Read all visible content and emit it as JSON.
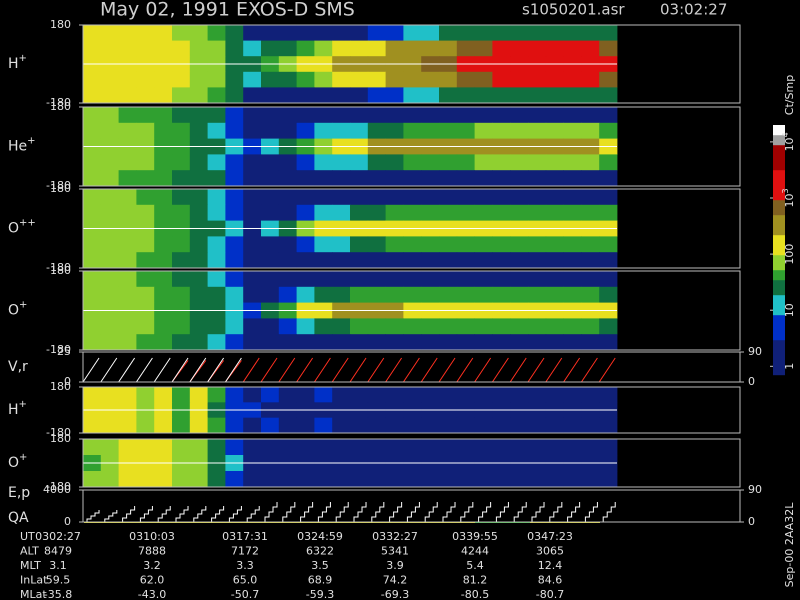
{
  "header": {
    "title": "May 02, 1991   EXOS-D SMS",
    "file": "s1050201.asr",
    "time": "03:02:27"
  },
  "chart_data": [
    {
      "type": "heatmap",
      "label": "H",
      "label_sup": "+",
      "ylim": [
        -180,
        180
      ],
      "yticks": [
        180,
        -180
      ],
      "values": [
        [
          150,
          150,
          150,
          120,
          120,
          80,
          60,
          40,
          30,
          2,
          2,
          2,
          2,
          2,
          3,
          3,
          5,
          5,
          10,
          10,
          20,
          20,
          30,
          30,
          30,
          30,
          30,
          30,
          30,
          20
        ],
        [
          150,
          150,
          150,
          120,
          120,
          100,
          80,
          60,
          20,
          10,
          20,
          30,
          50,
          80,
          100,
          100,
          150,
          200,
          300,
          300,
          400,
          600,
          800,
          1000,
          1000,
          1000,
          1000,
          1000,
          1000,
          800
        ],
        [
          150,
          150,
          150,
          150,
          120,
          100,
          80,
          60,
          30,
          30,
          50,
          80,
          100,
          150,
          200,
          200,
          300,
          400,
          500,
          600,
          800,
          1000,
          1500,
          2000,
          2000,
          2000,
          2000,
          2000,
          2000,
          1500
        ],
        [
          150,
          150,
          150,
          120,
          120,
          100,
          80,
          60,
          20,
          10,
          20,
          30,
          50,
          80,
          100,
          100,
          150,
          200,
          300,
          300,
          400,
          600,
          800,
          1000,
          1000,
          1000,
          1000,
          1000,
          1000,
          800
        ],
        [
          150,
          150,
          150,
          120,
          120,
          80,
          60,
          40,
          30,
          2,
          2,
          2,
          2,
          2,
          3,
          3,
          5,
          5,
          10,
          10,
          20,
          20,
          30,
          30,
          30,
          30,
          30,
          30,
          30,
          20
        ]
      ]
    },
    {
      "type": "heatmap",
      "label": "He",
      "label_sup": "+",
      "ylim": [
        -180,
        180
      ],
      "yticks": [
        180,
        -180
      ],
      "values": [
        [
          60,
          60,
          50,
          50,
          40,
          30,
          20,
          20,
          5,
          1,
          1,
          1,
          1,
          1,
          1,
          1,
          1,
          1,
          2,
          2,
          2,
          2,
          3,
          3,
          3,
          3,
          3,
          3,
          3,
          3
        ],
        [
          80,
          80,
          60,
          60,
          50,
          40,
          20,
          15,
          5,
          1,
          2,
          3,
          5,
          8,
          10,
          15,
          20,
          30,
          40,
          40,
          50,
          50,
          60,
          60,
          60,
          60,
          60,
          60,
          60,
          50
        ],
        [
          80,
          80,
          80,
          60,
          50,
          40,
          20,
          20,
          8,
          5,
          10,
          20,
          40,
          60,
          100,
          150,
          200,
          200,
          200,
          200,
          200,
          200,
          200,
          200,
          200,
          200,
          200,
          200,
          200,
          150
        ],
        [
          80,
          80,
          60,
          60,
          50,
          40,
          20,
          15,
          5,
          1,
          2,
          3,
          5,
          8,
          10,
          15,
          20,
          30,
          40,
          40,
          50,
          50,
          60,
          60,
          60,
          60,
          60,
          60,
          60,
          50
        ],
        [
          60,
          60,
          50,
          50,
          40,
          30,
          20,
          20,
          5,
          1,
          1,
          1,
          1,
          1,
          1,
          1,
          1,
          1,
          2,
          2,
          2,
          2,
          3,
          3,
          3,
          3,
          3,
          3,
          3,
          3
        ]
      ]
    },
    {
      "type": "heatmap",
      "label": "O",
      "label_sup": "++",
      "ylim": [
        -180,
        180
      ],
      "yticks": [
        180,
        -180
      ],
      "values": [
        [
          60,
          60,
          60,
          50,
          40,
          30,
          20,
          8,
          5,
          1,
          1,
          1,
          1,
          1,
          1,
          1,
          1,
          1,
          1,
          1,
          1,
          1,
          1,
          1,
          1,
          1,
          1,
          1,
          1,
          1
        ],
        [
          80,
          80,
          60,
          60,
          50,
          40,
          20,
          10,
          5,
          1,
          2,
          3,
          5,
          8,
          10,
          20,
          30,
          40,
          40,
          40,
          40,
          50,
          50,
          50,
          50,
          50,
          50,
          50,
          50,
          40
        ],
        [
          80,
          80,
          80,
          60,
          50,
          40,
          30,
          20,
          8,
          3,
          10,
          30,
          60,
          100,
          120,
          150,
          150,
          150,
          150,
          150,
          150,
          150,
          150,
          150,
          150,
          150,
          150,
          150,
          150,
          120
        ],
        [
          80,
          80,
          60,
          60,
          50,
          40,
          20,
          10,
          5,
          1,
          2,
          3,
          5,
          8,
          10,
          20,
          30,
          40,
          40,
          40,
          40,
          50,
          50,
          50,
          50,
          50,
          50,
          50,
          50,
          40
        ],
        [
          60,
          60,
          60,
          50,
          40,
          30,
          20,
          8,
          5,
          1,
          1,
          1,
          1,
          1,
          1,
          1,
          1,
          1,
          1,
          1,
          1,
          1,
          1,
          1,
          1,
          1,
          1,
          1,
          1,
          1
        ]
      ]
    },
    {
      "type": "heatmap",
      "label": "O",
      "label_sup": "+",
      "ylim": [
        -180,
        180
      ],
      "yticks": [
        180,
        -180
      ],
      "values": [
        [
          60,
          60,
          60,
          50,
          40,
          30,
          20,
          10,
          5,
          1,
          1,
          1,
          1,
          1,
          1,
          1,
          1,
          1,
          1,
          1,
          1,
          1,
          1,
          1,
          1,
          1,
          1,
          1,
          1,
          1
        ],
        [
          80,
          80,
          80,
          60,
          50,
          40,
          30,
          20,
          8,
          2,
          3,
          5,
          10,
          20,
          30,
          40,
          40,
          40,
          40,
          40,
          40,
          40,
          40,
          40,
          40,
          40,
          40,
          40,
          40,
          30
        ],
        [
          80,
          80,
          80,
          60,
          50,
          40,
          30,
          20,
          8,
          5,
          20,
          50,
          100,
          150,
          200,
          200,
          200,
          200,
          150,
          150,
          150,
          150,
          150,
          150,
          150,
          150,
          150,
          150,
          150,
          120
        ],
        [
          80,
          80,
          80,
          60,
          50,
          40,
          30,
          20,
          8,
          2,
          3,
          5,
          10,
          20,
          30,
          40,
          40,
          40,
          40,
          40,
          40,
          40,
          40,
          40,
          40,
          40,
          40,
          40,
          40,
          30
        ],
        [
          60,
          60,
          60,
          50,
          40,
          30,
          20,
          10,
          5,
          1,
          1,
          1,
          1,
          1,
          1,
          1,
          1,
          1,
          1,
          1,
          1,
          1,
          1,
          1,
          1,
          1,
          1,
          1,
          1,
          1
        ]
      ]
    },
    {
      "type": "line",
      "label": "V,r",
      "ylim": [
        0,
        25
      ],
      "yticks": [
        25,
        0
      ],
      "y2lim": [
        0,
        90
      ],
      "y2ticks": [
        90,
        0
      ],
      "series": [
        {
          "color": "#ff3020",
          "values": [
            null,
            null,
            null,
            null,
            null,
            18,
            18,
            18,
            18,
            20,
            20,
            20,
            20,
            20,
            20,
            20,
            20,
            20,
            20,
            20,
            20,
            20,
            20,
            20,
            20,
            20,
            20,
            20,
            20,
            20
          ]
        },
        {
          "color": "#ffffff",
          "values": [
            20,
            20,
            20,
            20,
            20,
            20,
            20,
            20,
            20,
            null,
            null,
            null,
            null,
            null,
            null,
            null,
            null,
            null,
            null,
            null,
            null,
            null,
            null,
            null,
            null,
            null,
            null,
            null,
            null,
            null
          ]
        }
      ]
    },
    {
      "type": "heatmap",
      "label": "H",
      "label_sup": "+",
      "ylim": [
        -180,
        180
      ],
      "yticks": [
        180,
        -180
      ],
      "values": [
        [
          100,
          100,
          150,
          60,
          150,
          40,
          100,
          40,
          5,
          3,
          5,
          3,
          2,
          5,
          3,
          2,
          1,
          1,
          1,
          1,
          1,
          1,
          1,
          1,
          1,
          1,
          1,
          1,
          1,
          1
        ],
        [
          150,
          100,
          150,
          60,
          120,
          40,
          100,
          30,
          5,
          5,
          3,
          3,
          3,
          2,
          3,
          1,
          1,
          1,
          1,
          1,
          1,
          1,
          1,
          1,
          1,
          1,
          1,
          1,
          1,
          1
        ],
        [
          100,
          100,
          150,
          60,
          150,
          40,
          100,
          40,
          5,
          3,
          5,
          3,
          2,
          5,
          3,
          2,
          1,
          1,
          1,
          1,
          1,
          1,
          1,
          1,
          1,
          1,
          1,
          1,
          1,
          1
        ]
      ]
    },
    {
      "type": "heatmap",
      "label": "O",
      "label_sup": "+",
      "ylim": [
        -180,
        180
      ],
      "yticks": [
        180,
        -180
      ],
      "values": [
        [
          60,
          60,
          150,
          150,
          150,
          60,
          60,
          30,
          5,
          1,
          1,
          1,
          1,
          1,
          1,
          1,
          1,
          1,
          1,
          1,
          1,
          1,
          1,
          1,
          1,
          1,
          1,
          1,
          1,
          1
        ],
        [
          40,
          60,
          150,
          150,
          150,
          60,
          60,
          30,
          8,
          1,
          1,
          1,
          1,
          1,
          1,
          1,
          1,
          1,
          1,
          1,
          1,
          1,
          1,
          1,
          1,
          1,
          1,
          1,
          1,
          1
        ],
        [
          60,
          60,
          150,
          150,
          120,
          60,
          60,
          30,
          5,
          1,
          1,
          1,
          1,
          1,
          1,
          1,
          1,
          1,
          1,
          1,
          1,
          1,
          1,
          1,
          1,
          1,
          1,
          1,
          1,
          1
        ]
      ]
    },
    {
      "type": "step",
      "label": "E,p",
      "label2": "QA",
      "ylim": [
        0,
        4000
      ],
      "yticks": [
        4000,
        0
      ],
      "y2lim": [
        0,
        90
      ],
      "y2ticks": [
        90,
        0
      ],
      "series": [
        {
          "color": "#ffffff",
          "values": [
            1500,
            1500,
            2000,
            2000,
            2000,
            2000,
            2000,
            2000,
            2000,
            2000,
            2500,
            2500,
            2500,
            2500,
            2500,
            2500,
            2500,
            2500,
            2500,
            2500,
            2500,
            2500,
            2500,
            2500,
            2500,
            2500,
            2500,
            2500,
            2500,
            2500
          ]
        }
      ]
    }
  ],
  "colorbar": {
    "label": "Ct/Smp",
    "zlim": [
      0.7,
      20000
    ],
    "ticks": [
      1,
      10,
      100,
      {
        "value": 1000,
        "label": "10",
        "sup": "3"
      },
      {
        "value": 10000,
        "label": "10",
        "sup": "4"
      }
    ]
  },
  "table": {
    "rows": [
      [
        "UT",
        "0302:27",
        "0310:03",
        "0317:31",
        "0324:59",
        "0332:27",
        "0339:55",
        "0347:23"
      ],
      [
        "ALT",
        "8479",
        "7888",
        "7172",
        "6322",
        "5341",
        "4244",
        "3065"
      ],
      [
        "MLT",
        "3.1",
        "3.2",
        "3.3",
        "3.5",
        "3.9",
        "5.4",
        "12.4"
      ],
      [
        "InLat",
        "59.5",
        "62.0",
        "65.0",
        "68.9",
        "74.2",
        "81.2",
        "84.6"
      ],
      [
        "MLat",
        "-35.8",
        "-43.0",
        "-50.7",
        "-59.3",
        "-69.3",
        "-80.5",
        "-80.7"
      ]
    ]
  },
  "footer": "Sep-00  2AA32L"
}
